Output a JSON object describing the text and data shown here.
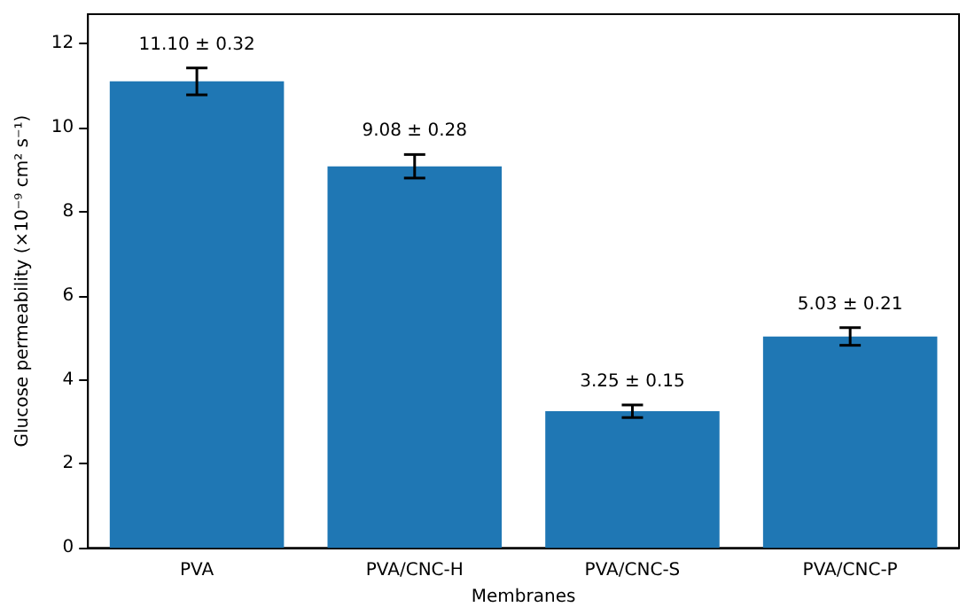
{
  "chart_data": {
    "type": "bar",
    "xlabel": "Membranes",
    "ylabel": "Glucose permeability (×10⁻⁹ cm² s⁻¹)",
    "categories": [
      "PVA",
      "PVA/CNC-H",
      "PVA/CNC-S",
      "PVA/CNC-P"
    ],
    "values": [
      11.1,
      9.08,
      3.25,
      5.03
    ],
    "errors": [
      0.32,
      0.28,
      0.15,
      0.21
    ],
    "value_labels": [
      "11.10 ± 0.32",
      "9.08 ± 0.28",
      "3.25 ± 0.15",
      "5.03 ± 0.21"
    ],
    "color": "#1f77b4",
    "ylim": [
      0,
      12.7
    ],
    "yticks": [
      0,
      2,
      4,
      6,
      8,
      10,
      12
    ],
    "grid": false
  }
}
